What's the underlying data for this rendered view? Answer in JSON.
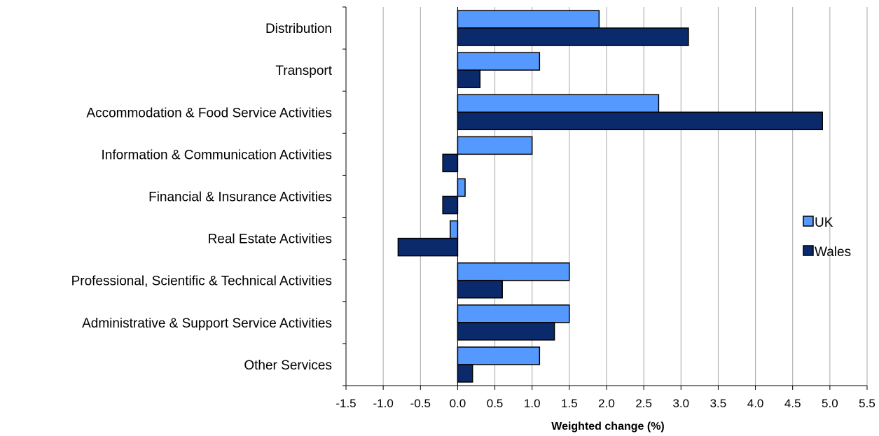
{
  "chart_data": {
    "type": "bar",
    "orientation": "horizontal",
    "categories": [
      "Distribution",
      "Transport",
      "Accommodation & Food Service Activities",
      "Information & Communication Activities",
      "Financial & Insurance Activities",
      "Real Estate Activities",
      "Professional, Scientific & Technical Activities",
      "Administrative & Support Service Activities",
      "Other Services"
    ],
    "series": [
      {
        "name": "UK",
        "color": "#5599FF",
        "values": [
          1.9,
          1.1,
          2.7,
          1.0,
          0.1,
          -0.1,
          1.5,
          1.5,
          1.1
        ]
      },
      {
        "name": "Wales",
        "color": "#0B2A6B",
        "values": [
          3.1,
          0.3,
          4.9,
          -0.2,
          -0.2,
          -0.8,
          0.6,
          1.3,
          0.2
        ]
      }
    ],
    "xlabel": "Weighted change (%)",
    "ylabel": "",
    "xlim": [
      -1.5,
      5.5
    ],
    "xticks": [
      "-1.5",
      "-1.0",
      "-0.5",
      "0.0",
      "0.5",
      "1.0",
      "1.5",
      "2.0",
      "2.5",
      "3.0",
      "3.5",
      "4.0",
      "4.5",
      "5.0",
      "5.5"
    ],
    "grid": "vertical",
    "legend_position": "right"
  }
}
